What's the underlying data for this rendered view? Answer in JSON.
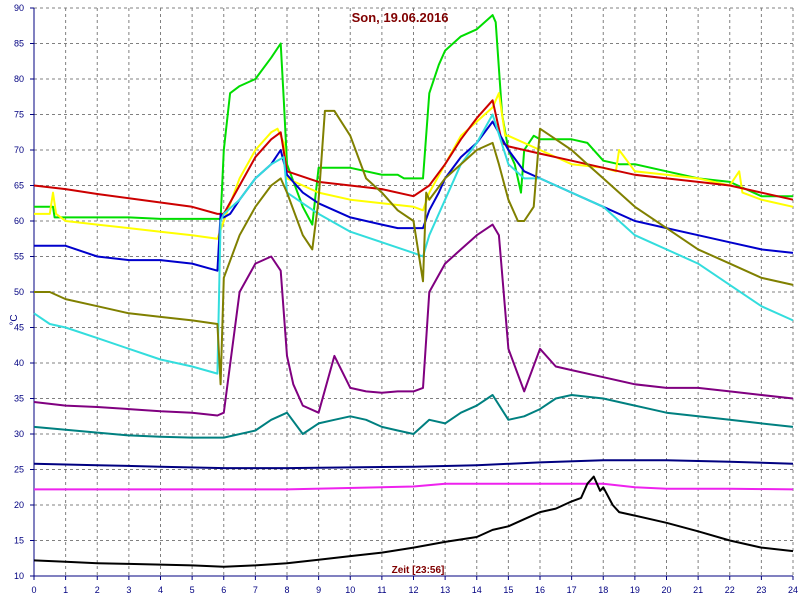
{
  "chart_data": {
    "type": "line",
    "title": "Son, 19.06.2016",
    "ylabel": "°C",
    "xlabel_annotation": "Zeit [23:56]",
    "xlim": [
      0,
      24
    ],
    "ylim": [
      10,
      90
    ],
    "x_ticks": [
      "0",
      "1",
      "2",
      "3",
      "4",
      "5",
      "6",
      "7",
      "8",
      "9",
      "10",
      "11",
      "12",
      "13",
      "14",
      "15",
      "16",
      "17",
      "18",
      "19",
      "20",
      "21",
      "22",
      "23",
      "24"
    ],
    "y_ticks": [
      "10",
      "15",
      "20",
      "25",
      "30",
      "35",
      "40",
      "45",
      "50",
      "55",
      "60",
      "65",
      "70",
      "75",
      "80",
      "85",
      "90"
    ],
    "grid": true,
    "series": [
      {
        "color": "#00dd00",
        "x": [
          0,
          0.6,
          0.65,
          1,
          2,
          3,
          4,
          5,
          5.9,
          6,
          6.2,
          6.5,
          7,
          7.5,
          7.8,
          7.9,
          8,
          8.5,
          8.8,
          9,
          10,
          11,
          11.5,
          11.7,
          12,
          12.3,
          12.5,
          12.8,
          13,
          13.5,
          14,
          14.5,
          14.6,
          14.8,
          15,
          15.2,
          15.4,
          15.5,
          15.8,
          16,
          16.5,
          17,
          17.5,
          18,
          18.5,
          19,
          20,
          21,
          22,
          23,
          24
        ],
        "y": [
          62,
          62,
          60.5,
          60.5,
          60.5,
          60.5,
          60.3,
          60.3,
          60.3,
          70,
          78,
          79,
          80,
          83,
          85,
          77,
          68,
          62,
          59.5,
          67.5,
          67.5,
          66.5,
          66.5,
          66,
          66,
          66,
          78,
          82,
          84,
          86,
          87,
          89,
          88,
          75,
          70,
          68,
          64,
          70,
          72,
          71.5,
          71.5,
          71.5,
          71,
          68.5,
          68,
          68,
          67,
          66,
          65.5,
          63.5,
          63.5
        ]
      },
      {
        "color": "#ffff00",
        "x": [
          0,
          0.5,
          0.6,
          0.7,
          1,
          2,
          3,
          4,
          5,
          5.8,
          6,
          6.5,
          7,
          7.5,
          7.7,
          7.9,
          8,
          9,
          10,
          11,
          12,
          12.3,
          12.5,
          13,
          13.5,
          14,
          14.5,
          14.7,
          14.9,
          15,
          16,
          17,
          18,
          18.4,
          18.5,
          19,
          20,
          21,
          22,
          22.3,
          22.4,
          23,
          24
        ],
        "y": [
          61,
          61,
          64,
          61,
          60,
          59.5,
          59,
          58.5,
          58,
          57.5,
          60,
          66,
          70,
          72.5,
          73,
          71,
          66,
          64,
          63,
          62.5,
          62,
          61.5,
          64,
          68,
          72,
          74,
          76,
          78,
          72,
          72,
          70,
          68,
          67.5,
          67,
          70,
          67,
          66.5,
          66,
          65,
          67,
          64,
          63,
          62
        ]
      },
      {
        "color": "#cc0000",
        "x": [
          0,
          1,
          2,
          3,
          4,
          5,
          5.8,
          6,
          6.5,
          7,
          7.5,
          7.8,
          8,
          9,
          10,
          11,
          12,
          12.5,
          13,
          13.5,
          14,
          14.5,
          14.8,
          15,
          16,
          17,
          18,
          19,
          20,
          21,
          22,
          23,
          24
        ],
        "y": [
          65,
          64.5,
          63.8,
          63.2,
          62.6,
          62,
          61,
          61,
          65,
          69,
          71.5,
          72.5,
          67,
          65.5,
          65,
          64.5,
          63.5,
          65,
          68,
          71.5,
          74.5,
          77,
          71,
          70.5,
          69.5,
          68.5,
          67.5,
          66.5,
          66,
          65.5,
          65,
          64,
          63
        ]
      },
      {
        "color": "#0000cc",
        "x": [
          0,
          1,
          2,
          3,
          4,
          5,
          5.8,
          5.9,
          6,
          6.2,
          6.5,
          7,
          7.5,
          7.8,
          8,
          8.5,
          9,
          10,
          11,
          11.5,
          12,
          12.3,
          12.5,
          12.8,
          13,
          13.5,
          14,
          14.5,
          15,
          15.5,
          16,
          17,
          18,
          19,
          20,
          21,
          22,
          23,
          24
        ],
        "y": [
          56.5,
          56.5,
          55,
          54.5,
          54.5,
          54,
          53,
          61,
          60.5,
          61,
          63,
          66,
          68,
          70,
          66.5,
          64,
          62.5,
          60.5,
          59.5,
          59,
          59,
          59,
          61.5,
          64,
          66,
          69,
          71,
          74,
          70,
          67,
          66,
          64,
          62,
          60,
          59,
          58,
          57,
          56,
          55.5
        ]
      },
      {
        "color": "#33dddd",
        "x": [
          0,
          0.5,
          1,
          2,
          3,
          4,
          5,
          5.8,
          5.9,
          6,
          6.5,
          7,
          7.5,
          7.9,
          8,
          8.5,
          9,
          10,
          11,
          12,
          12.3,
          12.5,
          13,
          13.5,
          14,
          14.5,
          15,
          15.5,
          16,
          17,
          17.5,
          18,
          18.5,
          19,
          19.5,
          20,
          21,
          22,
          23,
          24
        ],
        "y": [
          47,
          45.5,
          45,
          43.5,
          42,
          40.5,
          39.5,
          38.5,
          60,
          61,
          63,
          66,
          68,
          69,
          64,
          62.5,
          61,
          58.5,
          57,
          55.5,
          55,
          58,
          63,
          68,
          71,
          75,
          68,
          66,
          66,
          64,
          63,
          62,
          60,
          58,
          57,
          56,
          54,
          51,
          48,
          46
        ]
      },
      {
        "color": "#808000",
        "x": [
          0,
          0.5,
          1,
          2,
          3,
          4,
          5,
          5.8,
          5.9,
          6,
          6.5,
          7,
          7.5,
          7.8,
          8,
          8.5,
          8.8,
          9,
          9.2,
          9.5,
          10,
          10.5,
          11,
          11.5,
          12,
          12.3,
          12.4,
          12.5,
          13,
          13.5,
          14,
          14.5,
          14.7,
          15,
          15.3,
          15.5,
          15.8,
          16,
          16.5,
          17,
          17.5,
          18,
          19,
          20,
          21,
          22,
          23,
          24
        ],
        "y": [
          50,
          50,
          49,
          48,
          47,
          46.5,
          46,
          45.5,
          37,
          52,
          58,
          62,
          65,
          66,
          64,
          58,
          56,
          63,
          75.5,
          75.5,
          72,
          66,
          64,
          61.5,
          60,
          51.5,
          64,
          63,
          66,
          68,
          70,
          71,
          68,
          63,
          60,
          60,
          62,
          73,
          71.5,
          70,
          68,
          66,
          62,
          59,
          56,
          54,
          52,
          51
        ]
      },
      {
        "color": "#800080",
        "x": [
          0,
          1,
          2,
          3,
          4,
          5,
          5.8,
          6,
          6.5,
          7,
          7.5,
          7.8,
          8,
          8.2,
          8.5,
          9,
          9.5,
          10,
          10.5,
          11,
          11.5,
          12,
          12.3,
          12.5,
          13,
          13.5,
          14,
          14.5,
          14.7,
          15,
          15.5,
          16,
          16.5,
          17,
          18,
          19,
          20,
          21,
          22,
          23,
          24
        ],
        "y": [
          34.5,
          34,
          33.8,
          33.5,
          33.2,
          33,
          32.6,
          33,
          50,
          54,
          55,
          53,
          41,
          37,
          34,
          33,
          41,
          36.5,
          36,
          35.8,
          36,
          36,
          36.5,
          50,
          54,
          56,
          58,
          59.5,
          58,
          42,
          36,
          42,
          39.5,
          39,
          38,
          37,
          36.5,
          36.5,
          36,
          35.5,
          35
        ]
      },
      {
        "color": "#008080",
        "x": [
          0,
          1,
          2,
          3,
          4,
          5,
          6,
          7,
          7.5,
          8,
          8.5,
          9,
          9.5,
          10,
          10.5,
          11,
          11.5,
          12,
          12.5,
          13,
          13.5,
          14,
          14.5,
          15,
          15.5,
          16,
          16.5,
          17,
          18,
          19,
          20,
          21,
          22,
          23,
          24
        ],
        "y": [
          31,
          30.6,
          30.2,
          29.8,
          29.6,
          29.5,
          29.5,
          30.5,
          32,
          33,
          30,
          31.5,
          32,
          32.5,
          32,
          31,
          30.5,
          30,
          32,
          31.5,
          33,
          34,
          35.5,
          32,
          32.5,
          33.5,
          35,
          35.5,
          35,
          34,
          33,
          32.5,
          32,
          31.5,
          31
        ]
      },
      {
        "color": "#000080",
        "x": [
          0,
          2,
          4,
          6,
          8,
          10,
          12,
          14,
          16,
          18,
          20,
          22,
          24
        ],
        "y": [
          25.8,
          25.6,
          25.4,
          25.2,
          25.2,
          25.3,
          25.4,
          25.6,
          26,
          26.3,
          26.3,
          26.1,
          25.8
        ]
      },
      {
        "color": "#ee22ee",
        "x": [
          0,
          4,
          8,
          12,
          13,
          14,
          15,
          16,
          17,
          18,
          19,
          20,
          22,
          24
        ],
        "y": [
          22.2,
          22.2,
          22.2,
          22.6,
          23,
          23,
          23,
          23,
          23,
          23,
          22.5,
          22.3,
          22.3,
          22.2
        ]
      },
      {
        "color": "#000000",
        "x": [
          0,
          1,
          2,
          3,
          4,
          5,
          6,
          7,
          8,
          9,
          10,
          11,
          12,
          13,
          14,
          14.5,
          15,
          15.5,
          16,
          16.5,
          17,
          17.3,
          17.5,
          17.7,
          17.9,
          18,
          18.3,
          18.5,
          19,
          20,
          21,
          22,
          23,
          24
        ],
        "y": [
          12.2,
          12,
          11.8,
          11.7,
          11.6,
          11.5,
          11.3,
          11.5,
          11.8,
          12.3,
          12.8,
          13.3,
          14,
          14.8,
          15.5,
          16.5,
          17,
          18,
          19,
          19.5,
          20.5,
          21,
          23,
          24,
          22,
          22.5,
          20,
          19,
          18.5,
          17.5,
          16.3,
          15,
          14,
          13.5
        ]
      }
    ]
  }
}
